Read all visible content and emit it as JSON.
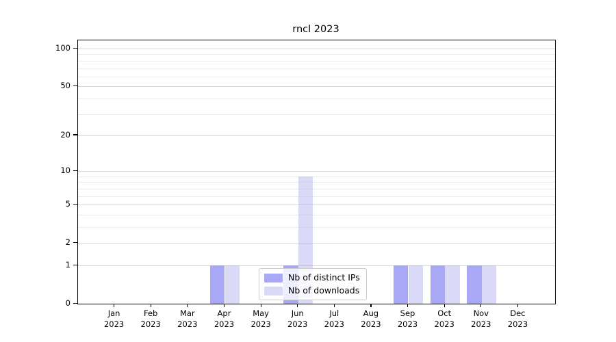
{
  "chart_data": {
    "type": "bar",
    "title": "rncl 2023",
    "categories": [
      "Jan",
      "Feb",
      "Mar",
      "Apr",
      "May",
      "Jun",
      "Jul",
      "Aug",
      "Sep",
      "Oct",
      "Nov",
      "Dec"
    ],
    "year_label": "2023",
    "series": [
      {
        "name": "Nb of distinct IPs",
        "color": "#a8a8f7",
        "values": [
          0,
          0,
          0,
          1,
          0,
          1,
          0,
          0,
          1,
          1,
          1,
          0
        ]
      },
      {
        "name": "Nb of downloads",
        "color": "#dadaf8",
        "values": [
          0,
          0,
          0,
          1,
          0,
          9,
          0,
          0,
          1,
          1,
          1,
          0
        ]
      }
    ],
    "xlabel": "",
    "ylabel": "",
    "y_axis": {
      "scale": "log1p",
      "tick_labels": [
        100,
        50,
        20,
        10,
        5,
        2,
        1,
        0
      ],
      "minor_gridline_values": [
        3,
        4,
        6,
        7,
        8,
        9,
        30,
        40,
        60,
        70,
        80,
        90
      ],
      "max_labeled_value": 100
    },
    "legend_position": "lower center",
    "grid": true
  }
}
